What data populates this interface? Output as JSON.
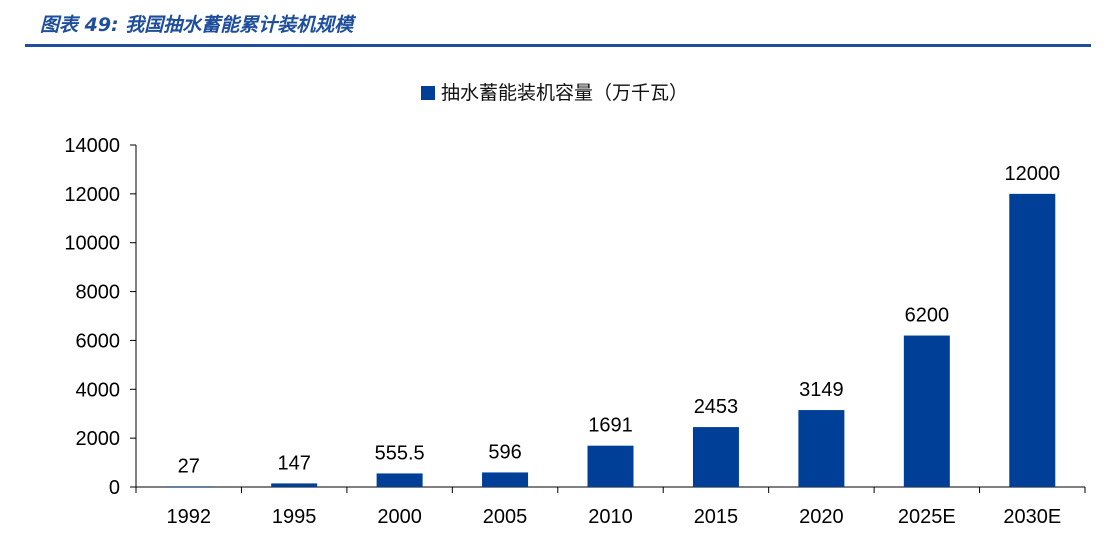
{
  "header": {
    "title": "图表 49:  我国抽水蓄能累计装机规模"
  },
  "colors": {
    "accent": "#1f4e9c",
    "bar": "#003f98"
  },
  "chart_data": {
    "type": "bar",
    "title": "",
    "xlabel": "",
    "ylabel": "",
    "categories": [
      "1992",
      "1995",
      "2000",
      "2005",
      "2010",
      "2015",
      "2020",
      "2025E",
      "2030E"
    ],
    "series": [
      {
        "name": "抽水蓄能装机容量（万千瓦）",
        "values": [
          27,
          147,
          555.5,
          596,
          1691,
          2453,
          3149,
          6200,
          12000
        ],
        "labels": [
          "27",
          "147",
          "555.5",
          "596",
          "1691",
          "2453",
          "3149",
          "6200",
          "12000"
        ]
      }
    ],
    "ylim": [
      0,
      14000
    ],
    "yticks": [
      0,
      2000,
      4000,
      6000,
      8000,
      10000,
      12000,
      14000
    ],
    "grid": false,
    "legend": "top-center"
  }
}
